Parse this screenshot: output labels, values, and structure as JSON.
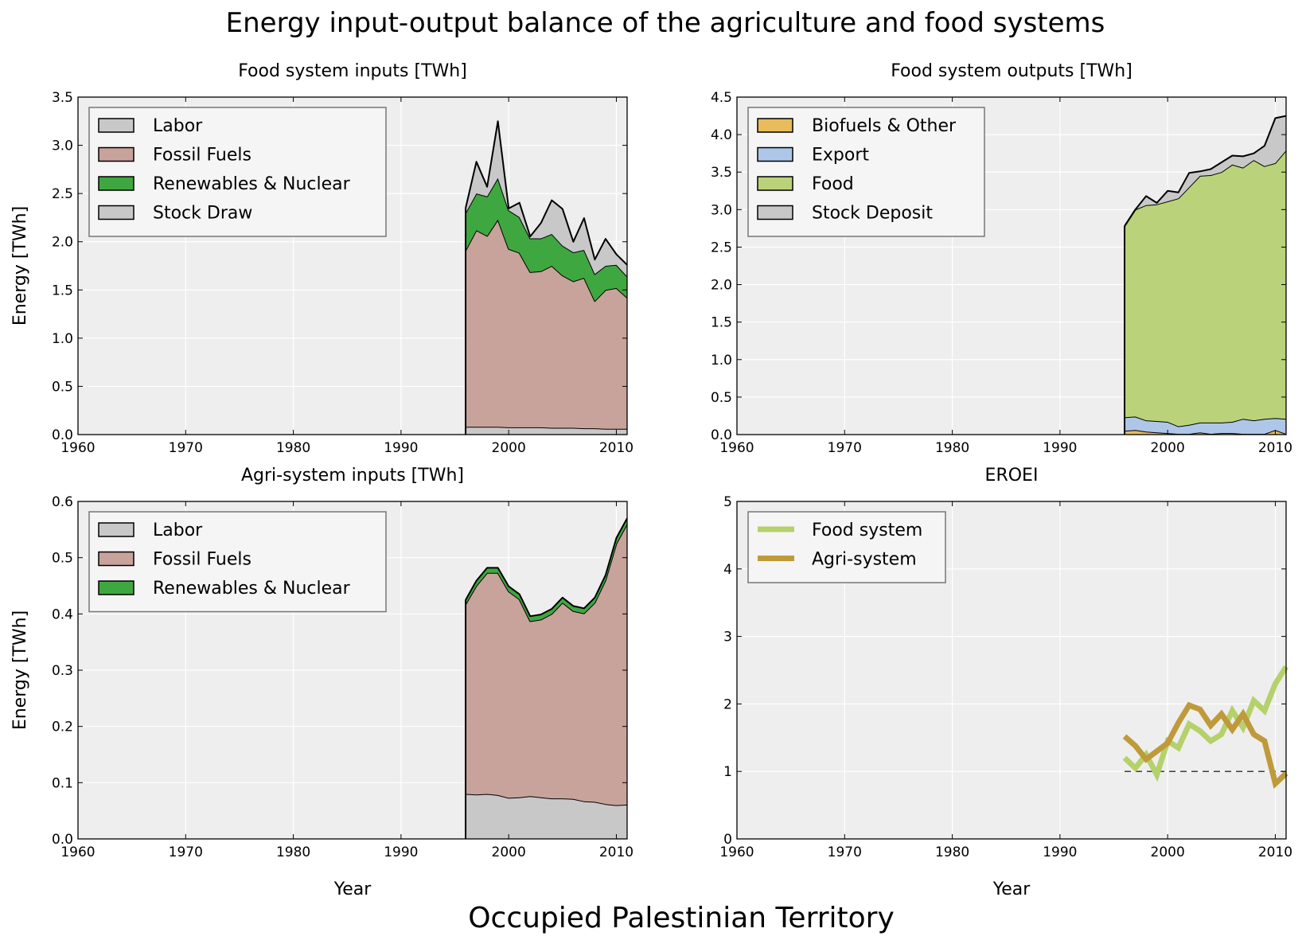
{
  "figure": {
    "suptitle": "Energy input-output balance of the agriculture and food systems",
    "bottom_title": "Occupied Palestinian Territory"
  },
  "chart_data": [
    {
      "type": "area",
      "stacked": true,
      "title": "Food system inputs [TWh]",
      "xlabel": "",
      "ylabel": "Energy [TWh]",
      "xlim": [
        1960,
        2011
      ],
      "ylim": [
        0,
        3.5
      ],
      "xticks": [
        1960,
        1970,
        1980,
        1990,
        2000,
        2010
      ],
      "yticks": [
        0.0,
        0.5,
        1.0,
        1.5,
        2.0,
        2.5,
        3.0,
        3.5
      ],
      "grid": true,
      "legend_position": "top-left",
      "x": [
        1996,
        1997,
        1998,
        1999,
        2000,
        2001,
        2002,
        2003,
        2004,
        2005,
        2006,
        2007,
        2008,
        2009,
        2010,
        2011
      ],
      "series": [
        {
          "name": "Labor",
          "color": "#c8c8c8",
          "values": [
            0.08,
            0.08,
            0.08,
            0.08,
            0.075,
            0.075,
            0.075,
            0.075,
            0.07,
            0.07,
            0.07,
            0.065,
            0.065,
            0.06,
            0.06,
            0.06
          ]
        },
        {
          "name": "Fossil Fuels",
          "color": "#c8a39b",
          "values": [
            1.83,
            2.04,
            1.98,
            2.15,
            1.85,
            1.81,
            1.61,
            1.62,
            1.68,
            1.58,
            1.52,
            1.56,
            1.32,
            1.44,
            1.46,
            1.36
          ]
        },
        {
          "name": "Renewables & Nuclear",
          "color": "#3fa73f",
          "values": [
            0.39,
            0.38,
            0.41,
            0.43,
            0.4,
            0.37,
            0.35,
            0.34,
            0.33,
            0.31,
            0.3,
            0.29,
            0.28,
            0.25,
            0.24,
            0.22
          ]
        },
        {
          "name": "Stock Draw",
          "color": "#c8c8c8",
          "values": [
            0.05,
            0.33,
            0.1,
            0.59,
            0.02,
            0.15,
            0.02,
            0.16,
            0.35,
            0.38,
            0.11,
            0.33,
            0.15,
            0.28,
            0.11,
            0.12
          ]
        }
      ]
    },
    {
      "type": "area",
      "stacked": true,
      "title": "Food system outputs [TWh]",
      "xlabel": "",
      "ylabel": "",
      "xlim": [
        1960,
        2011
      ],
      "ylim": [
        0,
        4.5
      ],
      "xticks": [
        1960,
        1970,
        1980,
        1990,
        2000,
        2010
      ],
      "yticks": [
        0.0,
        0.5,
        1.0,
        1.5,
        2.0,
        2.5,
        3.0,
        3.5,
        4.0,
        4.5
      ],
      "grid": true,
      "legend_position": "top-left",
      "x": [
        1996,
        1997,
        1998,
        1999,
        2000,
        2001,
        2002,
        2003,
        2004,
        2005,
        2006,
        2007,
        2008,
        2009,
        2010,
        2011
      ],
      "series": [
        {
          "name": "Biofuels & Other",
          "color": "#e8bb5c",
          "values": [
            0.05,
            0.06,
            0.04,
            0.03,
            0.02,
            0.01,
            0.01,
            0.03,
            0.01,
            0.02,
            0.02,
            0.01,
            0.01,
            0.01,
            0.06,
            0.01
          ]
        },
        {
          "name": "Export",
          "color": "#aec7e8",
          "values": [
            0.18,
            0.18,
            0.15,
            0.15,
            0.15,
            0.1,
            0.12,
            0.13,
            0.15,
            0.14,
            0.15,
            0.2,
            0.18,
            0.2,
            0.16,
            0.2
          ]
        },
        {
          "name": "Food",
          "color": "#bad37a",
          "values": [
            2.55,
            2.76,
            2.87,
            2.89,
            2.94,
            3.04,
            3.17,
            3.29,
            3.3,
            3.34,
            3.43,
            3.35,
            3.47,
            3.37,
            3.4,
            3.58
          ]
        },
        {
          "name": "Stock Deposit",
          "color": "#c8c8c8",
          "values": [
            0.0,
            0.0,
            0.12,
            0.02,
            0.14,
            0.08,
            0.19,
            0.06,
            0.08,
            0.13,
            0.12,
            0.15,
            0.09,
            0.27,
            0.6,
            0.46
          ]
        }
      ]
    },
    {
      "type": "area",
      "stacked": true,
      "title": "Agri-system inputs [TWh]",
      "xlabel": "Year",
      "ylabel": "Energy [TWh]",
      "xlim": [
        1960,
        2011
      ],
      "ylim": [
        0,
        0.6
      ],
      "xticks": [
        1960,
        1970,
        1980,
        1990,
        2000,
        2010
      ],
      "yticks": [
        0.0,
        0.1,
        0.2,
        0.3,
        0.4,
        0.5,
        0.6
      ],
      "grid": true,
      "legend_position": "top-left",
      "x": [
        1996,
        1997,
        1998,
        1999,
        2000,
        2001,
        2002,
        2003,
        2004,
        2005,
        2006,
        2007,
        2008,
        2009,
        2010,
        2011
      ],
      "series": [
        {
          "name": "Labor",
          "color": "#c8c8c8",
          "values": [
            0.08,
            0.079,
            0.08,
            0.078,
            0.073,
            0.074,
            0.076,
            0.074,
            0.072,
            0.072,
            0.071,
            0.067,
            0.066,
            0.062,
            0.06,
            0.061
          ]
        },
        {
          "name": "Fossil Fuels",
          "color": "#c8a39b",
          "values": [
            0.337,
            0.371,
            0.393,
            0.395,
            0.367,
            0.352,
            0.311,
            0.316,
            0.328,
            0.348,
            0.334,
            0.334,
            0.354,
            0.398,
            0.465,
            0.499
          ]
        },
        {
          "name": "Renewables & Nuclear",
          "color": "#3fa73f",
          "values": [
            0.008,
            0.009,
            0.009,
            0.009,
            0.009,
            0.009,
            0.009,
            0.009,
            0.009,
            0.009,
            0.009,
            0.009,
            0.009,
            0.009,
            0.01,
            0.01
          ]
        }
      ]
    },
    {
      "type": "line",
      "title": "EROEI",
      "xlabel": "Year",
      "ylabel": "",
      "xlim": [
        1960,
        2011
      ],
      "ylim": [
        0,
        5
      ],
      "xticks": [
        1960,
        1970,
        1980,
        1990,
        2000,
        2010
      ],
      "yticks": [
        0,
        1,
        2,
        3,
        4,
        5
      ],
      "grid": true,
      "legend_position": "top-left",
      "reference_line": {
        "y": 1,
        "style": "dashed",
        "x_from": 1996,
        "x_to": 2011
      },
      "x": [
        1996,
        1997,
        1998,
        1999,
        2000,
        2001,
        2002,
        2003,
        2004,
        2005,
        2006,
        2007,
        2008,
        2009,
        2010,
        2011
      ],
      "series": [
        {
          "name": "Food system",
          "color": "#b5d16a",
          "values": [
            1.2,
            1.05,
            1.25,
            0.95,
            1.45,
            1.35,
            1.7,
            1.6,
            1.45,
            1.55,
            1.9,
            1.65,
            2.05,
            1.9,
            2.3,
            2.55
          ]
        },
        {
          "name": "Agri-system",
          "color": "#bf9a3a",
          "values": [
            1.52,
            1.38,
            1.18,
            1.3,
            1.42,
            1.72,
            1.98,
            1.92,
            1.68,
            1.85,
            1.62,
            1.85,
            1.55,
            1.45,
            0.82,
            0.97
          ]
        }
      ]
    }
  ]
}
